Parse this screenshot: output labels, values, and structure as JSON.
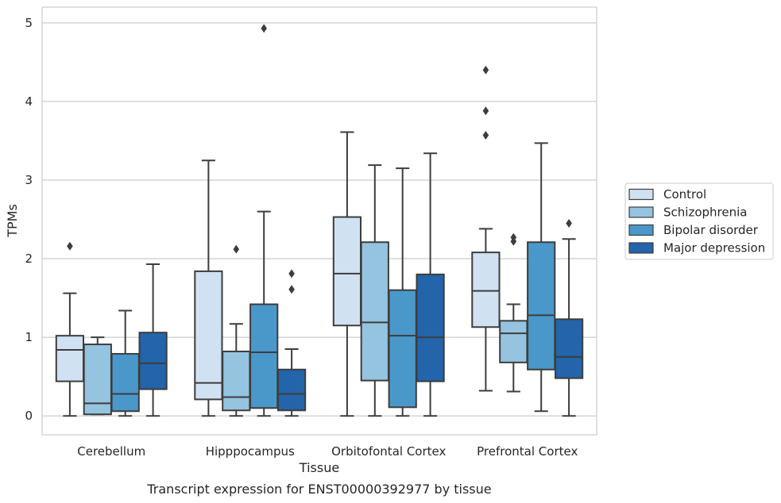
{
  "chart_data": {
    "type": "box",
    "caption": "Transcript expression for ENST00000392977 by tissue",
    "xlabel": "Tissue",
    "ylabel": "TPMs",
    "ylim": [
      -0.24,
      5.2
    ],
    "yticks": [
      "0",
      "1",
      "2",
      "3",
      "4",
      "5"
    ],
    "grid": "horizontal",
    "legend_position": "right",
    "categories": [
      "Cerebellum",
      "Hipppocampus",
      "Orbitofontal Cortex",
      "Prefrontal Cortex"
    ],
    "series": [
      {
        "name": "Control",
        "color": "#d0e1f2",
        "boxes": [
          {
            "whisker_low": 0.0,
            "q1": 0.44,
            "median": 0.84,
            "q3": 1.02,
            "whisker_high": 1.56,
            "outliers": [
              2.16
            ]
          },
          {
            "whisker_low": 0.0,
            "q1": 0.21,
            "median": 0.42,
            "q3": 1.84,
            "whisker_high": 3.25,
            "outliers": []
          },
          {
            "whisker_low": 0.0,
            "q1": 1.15,
            "median": 1.81,
            "q3": 2.53,
            "whisker_high": 3.61,
            "outliers": []
          },
          {
            "whisker_low": 0.32,
            "q1": 1.13,
            "median": 1.59,
            "q3": 2.08,
            "whisker_high": 2.38,
            "outliers": [
              3.57,
              3.88,
              4.4
            ]
          }
        ]
      },
      {
        "name": "Schizophrenia",
        "color": "#94c4df",
        "boxes": [
          {
            "whisker_low": 0.02,
            "q1": 0.02,
            "median": 0.16,
            "q3": 0.91,
            "whisker_high": 1.0,
            "outliers": []
          },
          {
            "whisker_low": 0.0,
            "q1": 0.07,
            "median": 0.24,
            "q3": 0.82,
            "whisker_high": 1.17,
            "outliers": [
              2.12
            ]
          },
          {
            "whisker_low": 0.0,
            "q1": 0.45,
            "median": 1.19,
            "q3": 2.21,
            "whisker_high": 3.19,
            "outliers": []
          },
          {
            "whisker_low": 0.31,
            "q1": 0.68,
            "median": 1.05,
            "q3": 1.21,
            "whisker_high": 1.42,
            "outliers": [
              2.22,
              2.27
            ]
          }
        ]
      },
      {
        "name": "Bipolar disorder",
        "color": "#4a98c9",
        "boxes": [
          {
            "whisker_low": 0.0,
            "q1": 0.06,
            "median": 0.28,
            "q3": 0.79,
            "whisker_high": 1.34,
            "outliers": []
          },
          {
            "whisker_low": 0.0,
            "q1": 0.1,
            "median": 0.81,
            "q3": 1.42,
            "whisker_high": 2.6,
            "outliers": [
              4.93
            ]
          },
          {
            "whisker_low": 0.0,
            "q1": 0.11,
            "median": 1.02,
            "q3": 1.6,
            "whisker_high": 3.15,
            "outliers": []
          },
          {
            "whisker_low": 0.06,
            "q1": 0.59,
            "median": 1.28,
            "q3": 2.21,
            "whisker_high": 3.47,
            "outliers": []
          }
        ]
      },
      {
        "name": "Major depression",
        "color": "#2364aa",
        "boxes": [
          {
            "whisker_low": 0.0,
            "q1": 0.34,
            "median": 0.67,
            "q3": 1.06,
            "whisker_high": 1.93,
            "outliers": []
          },
          {
            "whisker_low": 0.0,
            "q1": 0.07,
            "median": 0.28,
            "q3": 0.59,
            "whisker_high": 0.85,
            "outliers": [
              1.61,
              1.81
            ]
          },
          {
            "whisker_low": 0.0,
            "q1": 0.44,
            "median": 1.0,
            "q3": 1.8,
            "whisker_high": 3.34,
            "outliers": []
          },
          {
            "whisker_low": 0.0,
            "q1": 0.48,
            "median": 0.75,
            "q3": 1.23,
            "whisker_high": 2.25,
            "outliers": [
              2.45
            ]
          }
        ]
      }
    ]
  }
}
